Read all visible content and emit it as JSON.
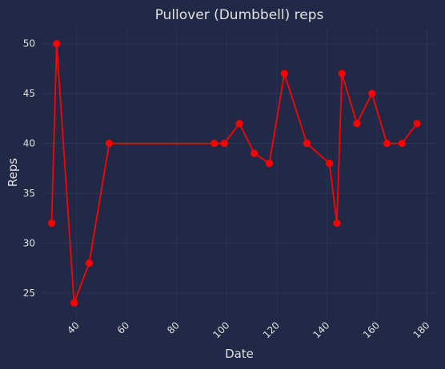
{
  "colors": {
    "background": "#212946",
    "grid": "#2A3459",
    "line": "#FF0000",
    "text": "#E0E0E0"
  },
  "chart_data": {
    "type": "line",
    "title": "Pullover (Dumbbell) reps",
    "xlabel": "Date",
    "ylabel": "Reps",
    "xlim": [
      26,
      184
    ],
    "ylim": [
      22.5,
      51.5
    ],
    "grid": true,
    "x_ticks": [
      40,
      60,
      80,
      100,
      120,
      140,
      160,
      180
    ],
    "y_ticks": [
      25,
      30,
      35,
      40,
      45,
      50
    ],
    "series": [
      {
        "x": [
          30,
          32,
          39,
          45,
          53,
          95,
          99,
          105,
          111,
          117,
          123,
          132,
          141,
          144,
          146,
          152,
          158,
          164,
          170,
          176
        ],
        "y": [
          32,
          50,
          24,
          28,
          40,
          40,
          40,
          42,
          39,
          38,
          47,
          40,
          38,
          32,
          47,
          42,
          45,
          40,
          40,
          42
        ]
      }
    ]
  }
}
